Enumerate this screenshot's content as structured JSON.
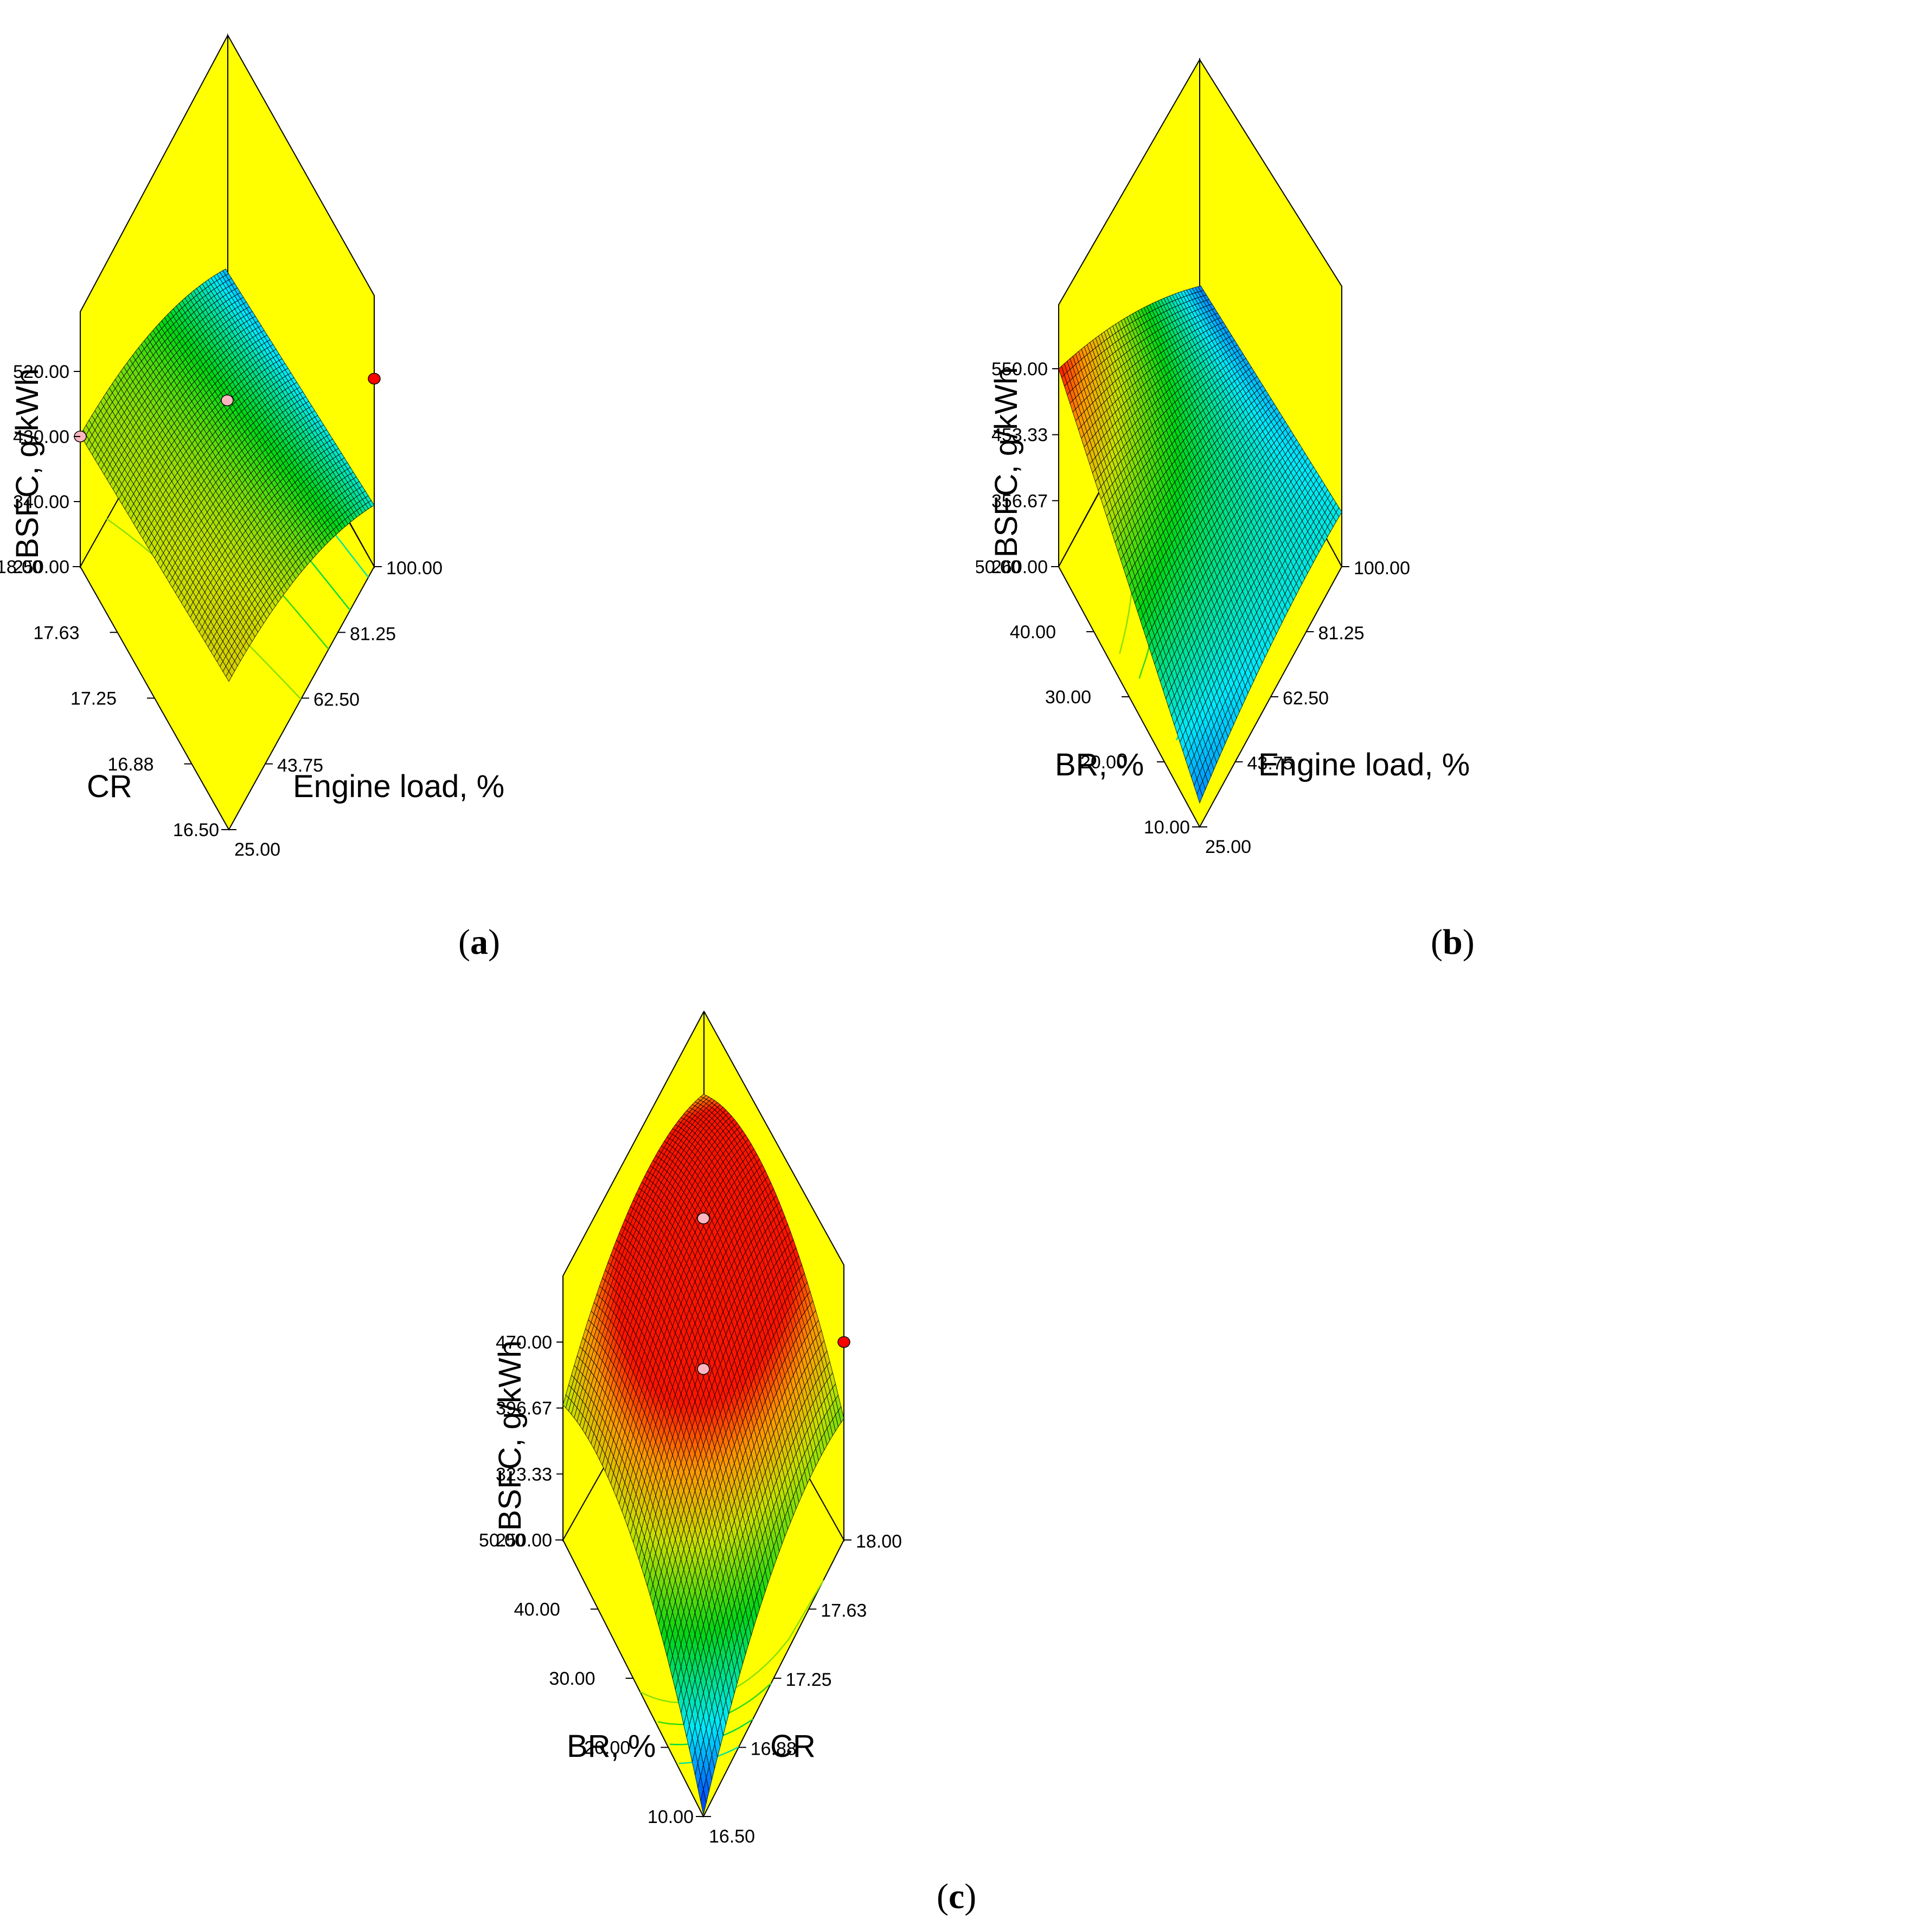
{
  "chart_data": [
    {
      "type": "surface3d",
      "caption_letter": "a",
      "zlabel": "BSFC, g/kWh",
      "xlabel": "CR",
      "ylabel": "Engine load, %",
      "xticks": [
        "18.00",
        "17.63",
        "17.25",
        "16.88",
        "16.50"
      ],
      "yticks": [
        "25.00",
        "43.75",
        "62.50",
        "81.25",
        "100.00"
      ],
      "zticks": [
        "250.00",
        "340.00",
        "430.00",
        "520.00"
      ],
      "xlim": [
        16.5,
        18.0
      ],
      "ylim": [
        25,
        100
      ],
      "zlim": [
        250,
        520
      ],
      "corner_values": {
        "x_min_y_min": 455,
        "x_max_y_min": 432,
        "x_min_y_max": 335,
        "x_max_y_max": 298
      },
      "design_points": [
        {
          "x": 16.5,
          "y": 100,
          "z": 510,
          "color": "#ff0000"
        },
        {
          "x": 17.25,
          "y": 62.5,
          "z": 480,
          "color": "#ffb6c1"
        },
        {
          "x": 18.0,
          "y": 25,
          "z": 430,
          "color": "#ffb6c1"
        }
      ]
    },
    {
      "type": "surface3d",
      "caption_letter": "b",
      "zlabel": "BSFC, g/kWh",
      "xlabel": "BR, %",
      "ylabel": "Engine load, %",
      "xticks": [
        "50.00",
        "40.00",
        "30.00",
        "20.00",
        "10.00"
      ],
      "yticks": [
        "25.00",
        "43.75",
        "62.50",
        "81.25",
        "100.00"
      ],
      "zticks": [
        "260.00",
        "356.67",
        "453.33",
        "550.00"
      ],
      "xlim": [
        10,
        50
      ],
      "ylim": [
        25,
        100
      ],
      "zlim": [
        260,
        550
      ],
      "corner_values": {
        "x_min_y_min": 295,
        "x_max_y_min": 550,
        "x_min_y_max": 340,
        "x_max_y_max": 290
      },
      "design_points": []
    },
    {
      "type": "surface3d",
      "caption_letter": "c",
      "zlabel": "BSFC, g/kWh",
      "xlabel": "BR, %",
      "ylabel": "CR",
      "xticks": [
        "50.00",
        "40.00",
        "30.00",
        "20.00",
        "10.00"
      ],
      "yticks": [
        "16.50",
        "16.88",
        "17.25",
        "17.63",
        "18.00"
      ],
      "zticks": [
        "250.00",
        "323.33",
        "396.67",
        "470.00"
      ],
      "xlim": [
        10,
        50
      ],
      "ylim": [
        16.5,
        18.0
      ],
      "zlim": [
        250,
        470
      ],
      "corner_values": {
        "x_min_y_min": 252,
        "x_max_y_min": 400,
        "x_min_y_max": 385,
        "x_max_y_max": 438
      },
      "design_points": [
        {
          "x": 10,
          "y": 18.0,
          "z": 470,
          "color": "#ff0000"
        },
        {
          "x": 30,
          "y": 17.25,
          "z": 440,
          "color": "#ffb6c1"
        },
        {
          "x": 50,
          "y": 18.0,
          "z": 300,
          "color": "#ffb6c1"
        }
      ]
    }
  ]
}
